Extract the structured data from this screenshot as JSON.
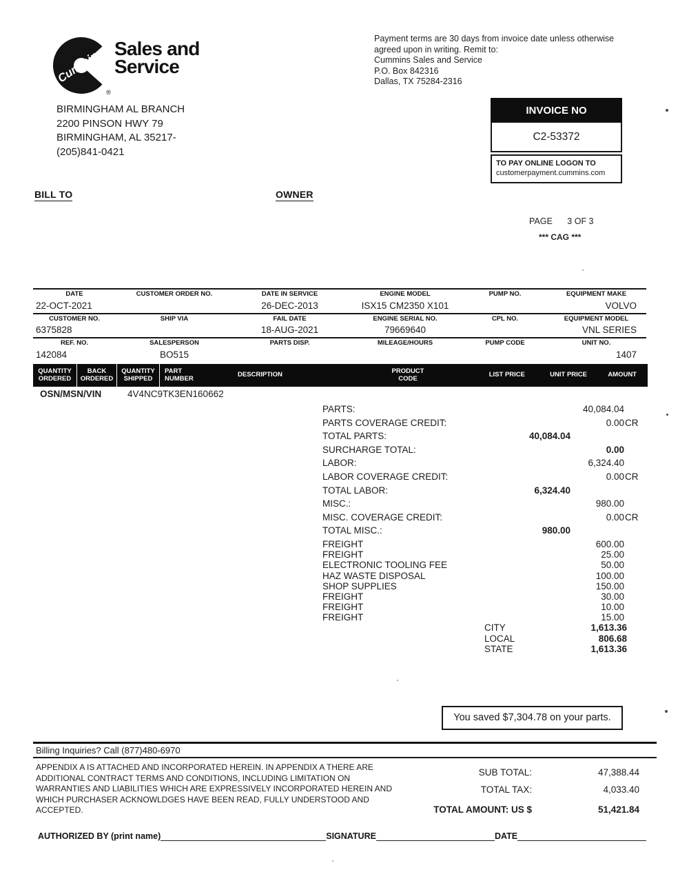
{
  "colors": {
    "ink": "#1a1a1a",
    "paper": "#ffffff"
  },
  "logo": {
    "brand": "Cummins",
    "title_line1": "Sales and",
    "title_line2": "Service",
    "registered": "®"
  },
  "remit": {
    "lines": [
      "Payment terms are 30 days from invoice date unless otherwise",
      "agreed upon in writing.  Remit to:",
      "Cummins Sales and Service",
      "P.O. Box 842316",
      "Dallas, TX 75284-2316"
    ]
  },
  "branch": {
    "lines": [
      "BIRMINGHAM AL BRANCH",
      "2200 PINSON HWY 79",
      "BIRMINGHAM, AL 35217-",
      "(205)841-0421"
    ]
  },
  "invoice_box": {
    "header": "INVOICE NO",
    "number": "C2-53372",
    "pay_line1": "TO PAY ONLINE LOGON TO",
    "pay_line2": "customerpayment.cummins.com"
  },
  "section_labels": {
    "bill_to": "BILL TO",
    "owner": "OWNER"
  },
  "page_info": {
    "page_label": "PAGE",
    "page_value": "3 OF 3",
    "cag": "*** CAG ***"
  },
  "info_table": {
    "groups": [
      {
        "headers": [
          "DATE",
          "CUSTOMER ORDER NO.",
          "DATE IN SERVICE",
          "ENGINE MODEL",
          "PUMP NO.",
          "EQUIPMENT MAKE"
        ],
        "values": [
          "22-OCT-2021",
          "",
          "26-DEC-2013",
          "ISX15 CM2350 X101",
          "",
          "VOLVO"
        ]
      },
      {
        "headers": [
          "CUSTOMER NO.",
          "SHIP VIA",
          "FAIL DATE",
          "ENGINE SERIAL NO.",
          "CPL NO.",
          "EQUIPMENT MODEL"
        ],
        "values": [
          "6375828",
          "",
          "18-AUG-2021",
          "79669640",
          "",
          "VNL SERIES"
        ]
      },
      {
        "headers": [
          "REF. NO.",
          "SALESPERSON",
          "PARTS DISP.",
          "MILEAGE/HOURS",
          "PUMP CODE",
          "UNIT NO."
        ],
        "values": [
          "142084",
          "BO515",
          "",
          "",
          "",
          "1407"
        ]
      }
    ]
  },
  "items_header": {
    "columns": [
      [
        "QUANTITY",
        "ORDERED"
      ],
      [
        "BACK",
        "ORDERED"
      ],
      [
        "QUANTITY",
        "SHIPPED"
      ],
      [
        "PART",
        "NUMBER"
      ],
      [
        "DESCRIPTION"
      ],
      [
        "PRODUCT",
        "CODE"
      ],
      [
        "LIST PRICE"
      ],
      [
        "UNIT PRICE"
      ],
      [
        "AMOUNT"
      ]
    ]
  },
  "vin_row": {
    "label": "OSN/MSN/VIN",
    "value": "4V4NC9TK3EN160662"
  },
  "totals": {
    "cr_suffix": "CR",
    "rows": [
      {
        "label": "PARTS:",
        "mid": "",
        "right": "40,084.04",
        "cr": false,
        "bold": false
      },
      {
        "label": "PARTS COVERAGE CREDIT:",
        "mid": "",
        "right": "0.00",
        "cr": true,
        "bold": false
      },
      {
        "label": "TOTAL PARTS:",
        "mid": "40,084.04",
        "right": "",
        "cr": false,
        "bold": true
      },
      {
        "label": "SURCHARGE TOTAL:",
        "mid": "",
        "right": "0.00",
        "cr": false,
        "bold": true
      },
      {
        "label": "LABOR:",
        "mid": "",
        "right": "6,324.40",
        "cr": false,
        "bold": false
      },
      {
        "label": "LABOR COVERAGE CREDIT:",
        "mid": "",
        "right": "0.00",
        "cr": true,
        "bold": false
      },
      {
        "label": "TOTAL LABOR:",
        "mid": "6,324.40",
        "right": "",
        "cr": false,
        "bold": true
      },
      {
        "label": "MISC.:",
        "mid": "",
        "right": "980.00",
        "cr": false,
        "bold": false
      },
      {
        "label": "MISC. COVERAGE CREDIT:",
        "mid": "",
        "right": "0.00",
        "cr": true,
        "bold": false
      },
      {
        "label": "TOTAL MISC.:",
        "mid": "980.00",
        "right": "",
        "cr": false,
        "bold": true
      },
      {
        "label": "FREIGHT",
        "mid": "",
        "right": "600.00",
        "cr": false,
        "bold": false
      },
      {
        "label": "FREIGHT",
        "mid": "",
        "right": "25.00",
        "cr": false,
        "bold": false
      },
      {
        "label": "ELECTRONIC TOOLING FEE",
        "mid": "",
        "right": "50.00",
        "cr": false,
        "bold": false
      },
      {
        "label": "HAZ WASTE DISPOSAL",
        "mid": "",
        "right": "100.00",
        "cr": false,
        "bold": false
      },
      {
        "label": "SHOP SUPPLIES",
        "mid": "",
        "right": "150.00",
        "cr": false,
        "bold": false
      },
      {
        "label": "FREIGHT",
        "mid": "",
        "right": "30.00",
        "cr": false,
        "bold": false
      },
      {
        "label": "FREIGHT",
        "mid": "",
        "right": "10.00",
        "cr": false,
        "bold": false
      },
      {
        "label": "FREIGHT",
        "mid": "",
        "right": "15.00",
        "cr": false,
        "bold": false
      }
    ],
    "tax_rows": [
      {
        "label": "CITY",
        "value": "1,613.36"
      },
      {
        "label": "LOCAL",
        "value": "806.68"
      },
      {
        "label": "STATE",
        "value": "1,613.36"
      }
    ]
  },
  "savings": {
    "text": "You saved $7,304.78 on your parts."
  },
  "footer": {
    "billing": "Billing Inquiries? Call (877)480-6970",
    "appendix_lines": [
      "APPENDIX A IS ATTACHED AND INCORPORATED HEREIN. IN APPENDIX A THERE ARE",
      "ADDITIONAL CONTRACT TERMS AND CONDITIONS, INCLUDING LIMITATION ON",
      "WARRANTIES AND LIABILITIES WHICH ARE EXPRESSIVELY INCORPORATED HEREIN AND",
      "WHICH PURCHASER ACKNOWLDGES HAVE BEEN READ, FULLY UNDERSTOOD AND",
      "ACCEPTED."
    ],
    "sub_total_label": "SUB TOTAL:",
    "sub_total": "47,388.44",
    "total_tax_label": "TOTAL TAX:",
    "total_tax": "4,033.40",
    "total_amount_label": "TOTAL AMOUNT: US $",
    "total_amount": "51,421.84",
    "authorized_label": "AUTHORIZED BY (print name)",
    "signature_label": "SIGNATURE",
    "date_label": "DATE"
  }
}
